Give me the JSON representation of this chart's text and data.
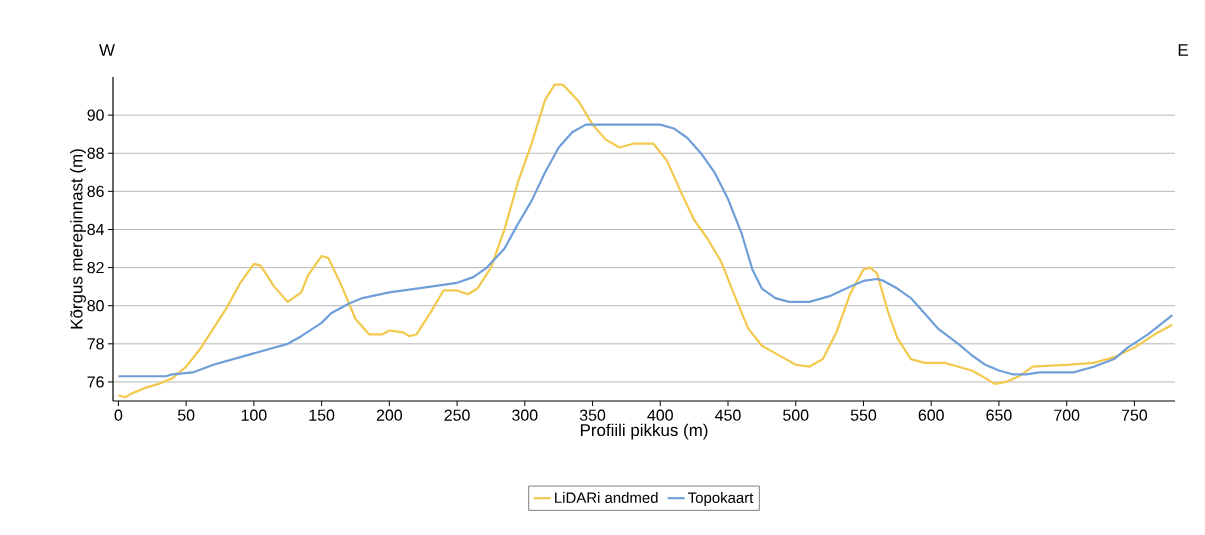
{
  "chart_data": {
    "type": "line",
    "xlabel": "Profiili pikkus (m)",
    "ylabel": "Kõrgus merepinnast (m)",
    "annotations": [
      "W",
      "E"
    ],
    "xlim": [
      -4,
      780
    ],
    "ylim": [
      75,
      92
    ],
    "xticks": [
      0,
      50,
      100,
      150,
      200,
      250,
      300,
      350,
      400,
      450,
      500,
      550,
      600,
      650,
      700,
      750
    ],
    "yticks": [
      76,
      78,
      80,
      82,
      84,
      86,
      88,
      90
    ],
    "grid": "y",
    "legend": "bottom",
    "marker": "none",
    "line_style": "solid",
    "series": [
      {
        "name": "LiDARi andmed",
        "color": "#f2c94c",
        "x": [
          0,
          5,
          10,
          20,
          30,
          40,
          50,
          60,
          70,
          80,
          90,
          100,
          105,
          115,
          125,
          135,
          140,
          150,
          155,
          165,
          175,
          185,
          195,
          200,
          210,
          215,
          220,
          230,
          240,
          250,
          258,
          265,
          275,
          285,
          295,
          305,
          315,
          322,
          328,
          340,
          350,
          360,
          370,
          380,
          395,
          405,
          415,
          425,
          435,
          445,
          455,
          465,
          475,
          490,
          500,
          510,
          520,
          530,
          540,
          550,
          555,
          560,
          568,
          575,
          585,
          595,
          610,
          620,
          630,
          640,
          647,
          655,
          665,
          675,
          700,
          720,
          735,
          750,
          765,
          778
        ],
        "values": [
          75.3,
          75.2,
          75.4,
          75.7,
          75.9,
          76.2,
          76.8,
          77.7,
          78.8,
          79.9,
          81.2,
          82.2,
          82.1,
          81.0,
          80.2,
          80.7,
          81.6,
          82.6,
          82.5,
          81.0,
          79.3,
          78.5,
          78.5,
          78.7,
          78.6,
          78.4,
          78.5,
          79.6,
          80.8,
          80.8,
          80.6,
          80.9,
          82.0,
          84.0,
          86.5,
          88.5,
          90.8,
          91.6,
          91.6,
          90.7,
          89.5,
          88.7,
          88.3,
          88.5,
          88.5,
          87.6,
          86.0,
          84.5,
          83.5,
          82.3,
          80.5,
          78.8,
          77.9,
          77.3,
          76.9,
          76.8,
          77.2,
          78.6,
          80.6,
          81.9,
          82.0,
          81.7,
          79.7,
          78.3,
          77.2,
          77.0,
          77.0,
          76.8,
          76.6,
          76.2,
          75.9,
          76.0,
          76.3,
          76.8,
          76.9,
          77.0,
          77.3,
          77.8,
          78.5,
          79.0
        ]
      },
      {
        "name": "Topokaart",
        "color": "#6f9fd8",
        "x": [
          0,
          35,
          40,
          55,
          70,
          90,
          110,
          125,
          135,
          150,
          157,
          170,
          180,
          200,
          220,
          250,
          262,
          272,
          285,
          295,
          305,
          315,
          325,
          335,
          345,
          355,
          400,
          410,
          420,
          430,
          440,
          450,
          460,
          468,
          475,
          485,
          495,
          510,
          525,
          540,
          550,
          560,
          565,
          575,
          585,
          595,
          605,
          620,
          630,
          640,
          650,
          660,
          670,
          680,
          705,
          720,
          735,
          745,
          760,
          778
        ],
        "values": [
          76.3,
          76.3,
          76.4,
          76.5,
          76.9,
          77.3,
          77.7,
          78.0,
          78.4,
          79.1,
          79.6,
          80.1,
          80.4,
          80.7,
          80.9,
          81.2,
          81.5,
          82.0,
          83.0,
          84.3,
          85.5,
          87.0,
          88.3,
          89.1,
          89.5,
          89.5,
          89.5,
          89.3,
          88.8,
          88.0,
          87.0,
          85.6,
          83.8,
          81.9,
          80.9,
          80.4,
          80.2,
          80.2,
          80.5,
          81.0,
          81.3,
          81.4,
          81.3,
          80.9,
          80.4,
          79.6,
          78.8,
          78.0,
          77.4,
          76.9,
          76.6,
          76.4,
          76.4,
          76.5,
          76.5,
          76.8,
          77.2,
          77.8,
          78.5,
          79.5
        ]
      }
    ]
  }
}
